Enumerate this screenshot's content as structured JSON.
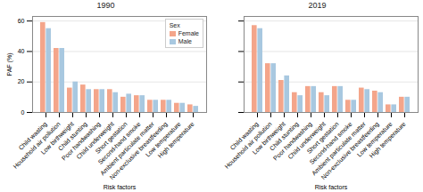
{
  "chart_data": [
    {
      "type": "bar",
      "title": "1990",
      "xlabel": "Risk factors",
      "ylabel": "PAF (%)",
      "categories": [
        "Child wasting",
        "Household air pollution",
        "Low birthweight",
        "Child stunting",
        "Poor handwashing",
        "Child underweight",
        "Short gestation",
        "Second-hand smoke",
        "Ambient particulate matter",
        "Non-exclusive breastfeeding",
        "Low temperature",
        "High temperature"
      ],
      "series": [
        {
          "name": "Female",
          "color": "#F4A58A",
          "values": [
            59,
            42,
            16,
            18,
            15,
            15,
            10,
            11,
            8,
            8,
            6,
            5
          ]
        },
        {
          "name": "Male",
          "color": "#A8C8E0",
          "values": [
            55,
            42,
            20,
            15,
            15,
            13,
            12,
            11,
            8,
            8,
            6,
            4
          ]
        }
      ],
      "ylim": [
        0,
        63
      ],
      "yticks": [
        0,
        20,
        40,
        60
      ],
      "grid": true,
      "legend": "upper right",
      "legend_title": "Sex"
    },
    {
      "type": "bar",
      "title": "2019",
      "xlabel": "Risk factors",
      "categories": [
        "Child wasting",
        "Household air pollution",
        "Low birthweight",
        "Child stunting",
        "Poor handwashing",
        "Child underweight",
        "Short gestation",
        "Second-hand smoke",
        "Ambient particulate matter",
        "Non-exclusive breastfeeding",
        "Low temperature",
        "High temperature"
      ],
      "series": [
        {
          "name": "Female",
          "color": "#F4A58A",
          "values": [
            57,
            32,
            21,
            13,
            17,
            13,
            17,
            8,
            16,
            14,
            5,
            10
          ]
        },
        {
          "name": "Male",
          "color": "#A8C8E0",
          "values": [
            55,
            32,
            24,
            11,
            17,
            11,
            17,
            8,
            15,
            13,
            5,
            10
          ]
        }
      ],
      "ylim": [
        0,
        63
      ],
      "yticks": [
        0,
        20,
        40,
        60
      ],
      "grid": true,
      "tick_labels": "x"
    }
  ]
}
